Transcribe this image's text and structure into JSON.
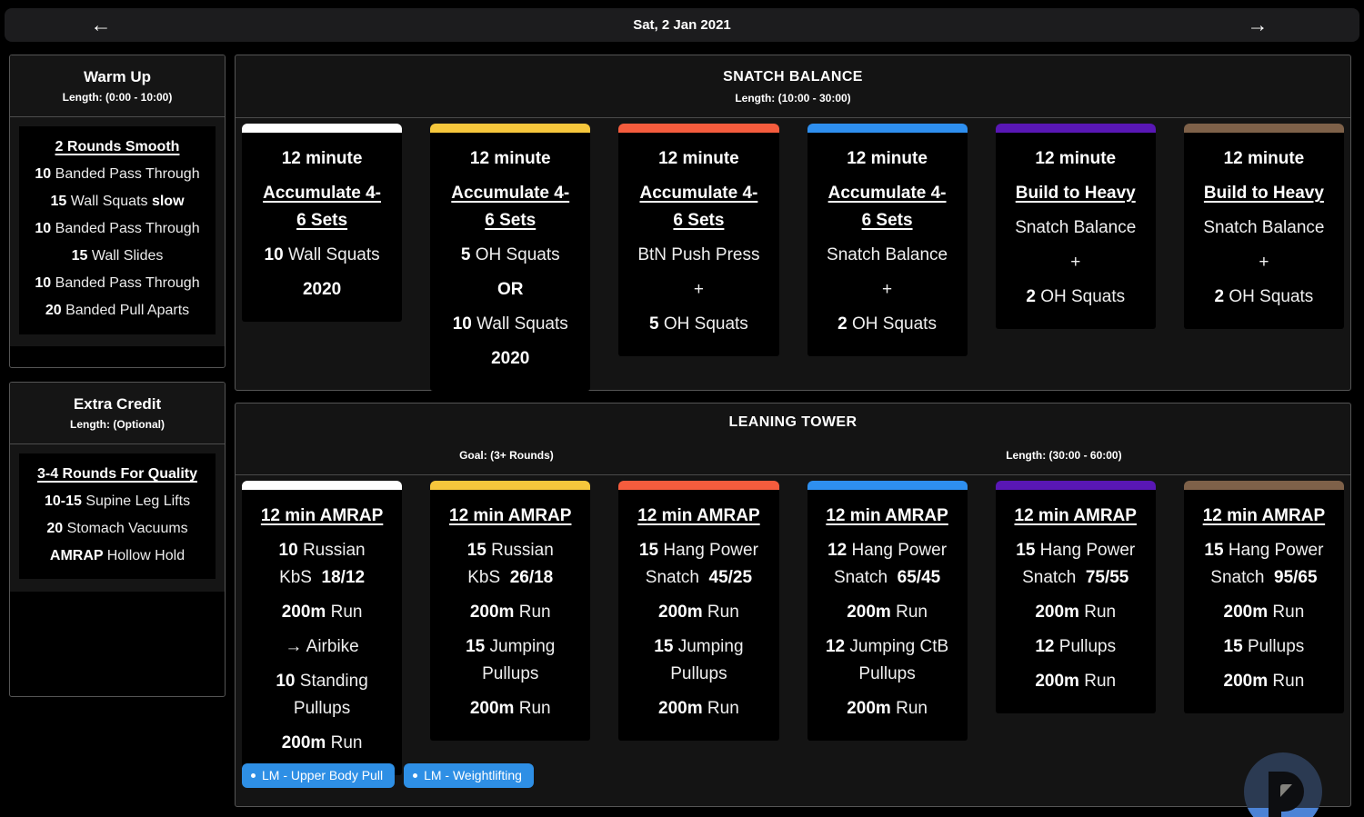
{
  "top_bar": {
    "date": "Sat, 2 Jan 2021",
    "prev_icon": "←",
    "next_icon": "→"
  },
  "colors": {
    "tag_blue": "#2E8FE5",
    "bar_white": "#FFFFFF",
    "bar_yellow": "#F6C73C",
    "bar_orange": "#F55C3D",
    "bar_blue": "#2E8FEF",
    "bar_purple": "#5917B5",
    "bar_brown": "#7E6149",
    "logo_navy": "#2B3A52",
    "logo_blue": "#4C83D6",
    "logo_dark": "#0D0E11",
    "logo_gray": "#83827D"
  },
  "sidebar": {
    "warmup": {
      "title": "Warm Up",
      "length": "Length: (0:00 - 10:00)",
      "lines": [
        [
          {
            "t": "2 Rounds Smooth",
            "b": true,
            "u": true
          }
        ],
        [
          {
            "t": "10 ",
            "b": true
          },
          {
            "t": "Banded Pass Through"
          }
        ],
        [
          {
            "t": "15 ",
            "b": true
          },
          {
            "t": "Wall Squats "
          },
          {
            "t": "slow",
            "b": true
          }
        ],
        [
          {
            "t": "10 ",
            "b": true
          },
          {
            "t": "Banded Pass Through"
          }
        ],
        [
          {
            "t": "15 ",
            "b": true
          },
          {
            "t": "Wall Slides"
          }
        ],
        [
          {
            "t": "10 ",
            "b": true
          },
          {
            "t": "Banded Pass Through"
          }
        ],
        [
          {
            "t": "20 ",
            "b": true
          },
          {
            "t": "Banded Pull Aparts"
          }
        ]
      ]
    },
    "extra_credit": {
      "title": "Extra Credit",
      "length": "Length: (Optional)",
      "lines": [
        [
          {
            "t": "3-4 Rounds For Quality",
            "b": true,
            "u": true
          }
        ],
        [
          {
            "t": "10-15 ",
            "b": true
          },
          {
            "t": "Supine Leg Lifts"
          }
        ],
        [
          {
            "t": "20 ",
            "b": true
          },
          {
            "t": "Stomach Vacuums"
          }
        ],
        [
          {
            "t": "AMRAP ",
            "b": true
          },
          {
            "t": "Hollow Hold"
          }
        ]
      ]
    }
  },
  "sections": {
    "snatch_balance": {
      "title": "SNATCH BALANCE",
      "length": "Length: (10:00 - 30:00)",
      "cards": [
        {
          "bar_color": "#FFFFFF",
          "lines": [
            [
              {
                "t": "12 minute",
                "b": true
              }
            ],
            [
              {
                "t": "Accumulate 4-\n6 Sets",
                "b": true,
                "u": true
              }
            ],
            [
              {
                "t": "10 ",
                "b": true
              },
              {
                "t": "Wall Squats"
              }
            ],
            [
              {
                "t": "2020",
                "b": true
              }
            ]
          ]
        },
        {
          "bar_color": "#F6C73C",
          "lines": [
            [
              {
                "t": "12 minute",
                "b": true
              }
            ],
            [
              {
                "t": "Accumulate 4-\n6 Sets",
                "b": true,
                "u": true
              }
            ],
            [
              {
                "t": "5 ",
                "b": true
              },
              {
                "t": "OH Squats"
              }
            ],
            [
              {
                "t": "OR",
                "b": true
              }
            ],
            [
              {
                "t": "10 ",
                "b": true
              },
              {
                "t": "Wall Squats"
              }
            ],
            [
              {
                "t": "2020",
                "b": true
              }
            ]
          ]
        },
        {
          "bar_color": "#F55C3D",
          "lines": [
            [
              {
                "t": "12 minute",
                "b": true
              }
            ],
            [
              {
                "t": "Accumulate 4-\n6 Sets",
                "b": true,
                "u": true
              }
            ],
            [
              {
                "t": "BtN Push Press"
              }
            ],
            [
              {
                "t": "+"
              }
            ],
            [
              {
                "t": "5 ",
                "b": true
              },
              {
                "t": "OH Squats"
              }
            ]
          ]
        },
        {
          "bar_color": "#2E8FEF",
          "lines": [
            [
              {
                "t": "12 minute",
                "b": true
              }
            ],
            [
              {
                "t": "Accumulate 4-\n6 Sets",
                "b": true,
                "u": true
              }
            ],
            [
              {
                "t": "Snatch Balance"
              }
            ],
            [
              {
                "t": "+"
              }
            ],
            [
              {
                "t": "2 ",
                "b": true
              },
              {
                "t": "OH Squats"
              }
            ]
          ]
        },
        {
          "bar_color": "#5917B5",
          "lines": [
            [
              {
                "t": "12 minute",
                "b": true
              }
            ],
            [
              {
                "t": "Build to Heavy",
                "b": true,
                "u": true
              }
            ],
            [
              {
                "t": "Snatch Balance"
              }
            ],
            [
              {
                "t": "+"
              }
            ],
            [
              {
                "t": "2 ",
                "b": true
              },
              {
                "t": "OH Squats"
              }
            ]
          ]
        },
        {
          "bar_color": "#7E6149",
          "lines": [
            [
              {
                "t": "12 minute",
                "b": true
              }
            ],
            [
              {
                "t": "Build to Heavy",
                "b": true,
                "u": true
              }
            ],
            [
              {
                "t": "Snatch Balance"
              }
            ],
            [
              {
                "t": "+"
              }
            ],
            [
              {
                "t": "2 ",
                "b": true
              },
              {
                "t": "OH Squats"
              }
            ]
          ]
        }
      ]
    },
    "leaning_tower": {
      "title": "LEANING TOWER",
      "goal": "Goal: (3+ Rounds)",
      "length": "Length: (30:00 - 60:00)",
      "cards": [
        {
          "bar_color": "#FFFFFF",
          "lines": [
            [
              {
                "t": "12 min AMRAP",
                "b": true,
                "u": true
              }
            ],
            [
              {
                "t": "10 ",
                "b": true
              },
              {
                "t": "Russian\nKbS  "
              },
              {
                "t": "18/12",
                "b": true
              }
            ],
            [
              {
                "t": "200m",
                "b": true
              },
              {
                "t": " Run"
              }
            ],
            [
              {
                "t": "→ Airbike"
              }
            ],
            [
              {
                "t": "10 ",
                "b": true
              },
              {
                "t": "Standing\nPullups"
              }
            ],
            [
              {
                "t": "200m",
                "b": true
              },
              {
                "t": " Run"
              }
            ]
          ]
        },
        {
          "bar_color": "#F6C73C",
          "lines": [
            [
              {
                "t": "12 min AMRAP",
                "b": true,
                "u": true
              }
            ],
            [
              {
                "t": "15 ",
                "b": true
              },
              {
                "t": "Russian\nKbS  "
              },
              {
                "t": "26/18",
                "b": true
              }
            ],
            [
              {
                "t": "200m",
                "b": true
              },
              {
                "t": " Run"
              }
            ],
            [
              {
                "t": "15 ",
                "b": true
              },
              {
                "t": "Jumping\nPullups"
              }
            ],
            [
              {
                "t": "200m",
                "b": true
              },
              {
                "t": " Run"
              }
            ]
          ]
        },
        {
          "bar_color": "#F55C3D",
          "lines": [
            [
              {
                "t": "12 min AMRAP",
                "b": true,
                "u": true
              }
            ],
            [
              {
                "t": "15 ",
                "b": true
              },
              {
                "t": "Hang Power\nSnatch  "
              },
              {
                "t": "45/25",
                "b": true
              }
            ],
            [
              {
                "t": "200m",
                "b": true
              },
              {
                "t": " Run"
              }
            ],
            [
              {
                "t": "15 ",
                "b": true
              },
              {
                "t": "Jumping\nPullups"
              }
            ],
            [
              {
                "t": "200m",
                "b": true
              },
              {
                "t": " Run"
              }
            ]
          ]
        },
        {
          "bar_color": "#2E8FEF",
          "lines": [
            [
              {
                "t": "12 min AMRAP",
                "b": true,
                "u": true
              }
            ],
            [
              {
                "t": "12 ",
                "b": true
              },
              {
                "t": "Hang Power\nSnatch  "
              },
              {
                "t": "65/45",
                "b": true
              }
            ],
            [
              {
                "t": "200m",
                "b": true
              },
              {
                "t": " Run"
              }
            ],
            [
              {
                "t": "12 ",
                "b": true
              },
              {
                "t": "Jumping CtB\nPullups"
              }
            ],
            [
              {
                "t": "200m",
                "b": true
              },
              {
                "t": " Run"
              }
            ]
          ]
        },
        {
          "bar_color": "#5917B5",
          "lines": [
            [
              {
                "t": "12 min AMRAP",
                "b": true,
                "u": true
              }
            ],
            [
              {
                "t": "15 ",
                "b": true
              },
              {
                "t": "Hang Power\nSnatch  "
              },
              {
                "t": "75/55",
                "b": true
              }
            ],
            [
              {
                "t": "200m",
                "b": true
              },
              {
                "t": " Run"
              }
            ],
            [
              {
                "t": "12 ",
                "b": true
              },
              {
                "t": "Pullups"
              }
            ],
            [
              {
                "t": "200m",
                "b": true
              },
              {
                "t": " Run"
              }
            ]
          ]
        },
        {
          "bar_color": "#7E6149",
          "lines": [
            [
              {
                "t": "12 min AMRAP",
                "b": true,
                "u": true
              }
            ],
            [
              {
                "t": "15 ",
                "b": true
              },
              {
                "t": "Hang Power\nSnatch  "
              },
              {
                "t": "95/65",
                "b": true
              }
            ],
            [
              {
                "t": "200m",
                "b": true
              },
              {
                "t": " Run"
              }
            ],
            [
              {
                "t": "15 ",
                "b": true
              },
              {
                "t": "Pullups"
              }
            ],
            [
              {
                "t": "200m",
                "b": true
              },
              {
                "t": " Run"
              }
            ]
          ]
        }
      ],
      "tags": [
        "LM - Upper Body Pull",
        "LM - Weightlifting"
      ]
    }
  }
}
